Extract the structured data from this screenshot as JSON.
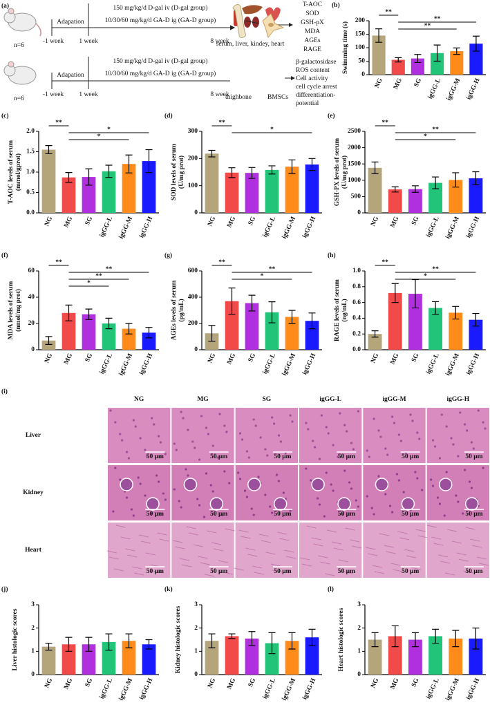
{
  "schematic": {
    "label": "(a)",
    "rows": [
      {
        "n": "n=6",
        "adaptation": "Adapation",
        "start": "-1 week",
        "week1": "1 week",
        "dose1": "150 mg/kg/d D-gal iv (D-gal group)",
        "dose2": "10/30/60 mg/kg/d GA-D ig (GA-D group)",
        "end": "8 week",
        "samples": [
          "serum, liver, kindey, heart"
        ],
        "outputs": [
          "T-AOC",
          "SOD",
          "GSH-pX",
          "MDA",
          "AGEs",
          "RAGE"
        ]
      },
      {
        "n": "n=6",
        "adaptation": "Adapation",
        "start": "-1 week",
        "week1": "1 week",
        "dose1": "150 mg/kg/d D-gal iv (D-gal group)",
        "dose2": "10/30/60 mg/kg/d GA-D ig (GA-D group)",
        "end": "8 week",
        "samples": [
          "thighbone",
          "BMSCs"
        ],
        "outputs": [
          "β-galactosidase",
          "ROS content",
          "Cell activity",
          "cell cycle arrest",
          "differentiation-",
          "potential"
        ]
      }
    ]
  },
  "histology": {
    "label": "(i)",
    "columns": [
      "NG",
      "MG",
      "SG",
      "igGG-L",
      "igGG-M",
      "igGG-H"
    ],
    "rows": [
      "Liver",
      "Kidney",
      "Heart"
    ],
    "scale_bar": "50 μm"
  },
  "chart_data": [
    {
      "type": "bar",
      "panel": "(b)",
      "ylabel": [
        "Swimming time (s)"
      ],
      "categories": [
        "NG",
        "MG",
        "SG",
        "igGG-L",
        "igGG-M",
        "igGG-H"
      ],
      "colors": [
        "#b5a57a",
        "#f04a4a",
        "#b030e0",
        "#22c47a",
        "#ff8c1a",
        "#1a1aff"
      ],
      "values": [
        145,
        55,
        60,
        80,
        87,
        115
      ],
      "errors": [
        25,
        8,
        15,
        30,
        12,
        28
      ],
      "ylim": [
        0,
        200
      ],
      "yticks": [
        0,
        50,
        100,
        150,
        200
      ],
      "significance": [
        {
          "between": [
            0,
            1
          ],
          "label": "**"
        },
        {
          "between": [
            1,
            5
          ],
          "label": "**"
        },
        {
          "between": [
            1,
            4
          ],
          "label": "**"
        }
      ]
    },
    {
      "type": "bar",
      "panel": "(c)",
      "ylabel": [
        "T-AOC levels of serum",
        "(mmol/gprot)"
      ],
      "categories": [
        "NG",
        "MG",
        "SG",
        "igGG-L",
        "igGG-M",
        "igGG-H"
      ],
      "colors": [
        "#b5a57a",
        "#f04a4a",
        "#b030e0",
        "#22c47a",
        "#ff8c1a",
        "#1a1aff"
      ],
      "values": [
        1.55,
        0.87,
        0.88,
        1.02,
        1.2,
        1.27
      ],
      "errors": [
        0.1,
        0.12,
        0.2,
        0.15,
        0.22,
        0.28
      ],
      "ylim": [
        0,
        2
      ],
      "yticks": [
        {
          "value": 0,
          "label": "0.0"
        },
        0.5,
        {
          "value": 1,
          "label": "1.0"
        },
        1.5,
        {
          "value": 2,
          "label": "2.0"
        }
      ],
      "significance": [
        {
          "between": [
            0,
            1
          ],
          "label": "**"
        },
        {
          "between": [
            1,
            5
          ],
          "label": "*"
        },
        {
          "between": [
            1,
            4
          ],
          "label": "*"
        }
      ]
    },
    {
      "type": "bar",
      "panel": "(d)",
      "ylabel": [
        "SOD levels of serum",
        "(U/mg prot)"
      ],
      "categories": [
        "NG",
        "MG",
        "SG",
        "igGG-L",
        "igGG-M",
        "igGG-H"
      ],
      "colors": [
        "#b5a57a",
        "#f04a4a",
        "#b030e0",
        "#22c47a",
        "#ff8c1a",
        "#1a1aff"
      ],
      "values": [
        218,
        148,
        147,
        158,
        170,
        178
      ],
      "errors": [
        12,
        18,
        20,
        15,
        25,
        22
      ],
      "ylim": [
        0,
        300
      ],
      "yticks": [
        0,
        100,
        200,
        300
      ],
      "significance": [
        {
          "between": [
            0,
            1
          ],
          "label": "**"
        },
        {
          "between": [
            1,
            5
          ],
          "label": "*"
        }
      ]
    },
    {
      "type": "bar",
      "panel": "(e)",
      "ylabel": [
        "GSH-PX levels of serum",
        "(U/mg prot)"
      ],
      "categories": [
        "NG",
        "MG",
        "SG",
        "igGG-L",
        "igGG-M",
        "igGG-H"
      ],
      "colors": [
        "#b5a57a",
        "#f04a4a",
        "#b030e0",
        "#22c47a",
        "#ff8c1a",
        "#1a1aff"
      ],
      "values": [
        1380,
        720,
        730,
        920,
        1010,
        1060
      ],
      "errors": [
        180,
        80,
        100,
        180,
        220,
        200
      ],
      "ylim": [
        0,
        2500
      ],
      "yticks": [
        0,
        500,
        1000,
        1500,
        2000,
        2500
      ],
      "significance": [
        {
          "between": [
            0,
            1
          ],
          "label": "**"
        },
        {
          "between": [
            1,
            5
          ],
          "label": "**"
        },
        {
          "between": [
            1,
            4
          ],
          "label": "*"
        }
      ]
    },
    {
      "type": "bar",
      "panel": "(f)",
      "ylabel": [
        "MDA levels of serum",
        "(nmol/mg prot)"
      ],
      "categories": [
        "NG",
        "MG",
        "SG",
        "igGG-L",
        "igGG-M",
        "igGG-H"
      ],
      "colors": [
        "#b5a57a",
        "#f04a4a",
        "#b030e0",
        "#22c47a",
        "#ff8c1a",
        "#1a1aff"
      ],
      "values": [
        7,
        28,
        27,
        20,
        16,
        13
      ],
      "errors": [
        3,
        6,
        4,
        4,
        4,
        4
      ],
      "ylim": [
        0,
        60
      ],
      "yticks": [
        0,
        20,
        40,
        60
      ],
      "significance": [
        {
          "between": [
            0,
            1
          ],
          "label": "**"
        },
        {
          "between": [
            1,
            5
          ],
          "label": "**"
        },
        {
          "between": [
            1,
            4
          ],
          "label": "**"
        },
        {
          "between": [
            1,
            3
          ],
          "label": "*"
        }
      ]
    },
    {
      "type": "bar",
      "panel": "(g)",
      "ylabel": [
        "AGEs levels of serum",
        "(pg/mL)"
      ],
      "categories": [
        "NG",
        "MG",
        "SG",
        "igGG-L",
        "igGG-M",
        "igGG-H"
      ],
      "colors": [
        "#b5a57a",
        "#f04a4a",
        "#b030e0",
        "#22c47a",
        "#ff8c1a",
        "#1a1aff"
      ],
      "values": [
        125,
        370,
        355,
        285,
        250,
        220
      ],
      "errors": [
        60,
        100,
        60,
        80,
        50,
        60
      ],
      "ylim": [
        0,
        600
      ],
      "yticks": [
        0,
        200,
        400,
        600
      ],
      "significance": [
        {
          "between": [
            0,
            1
          ],
          "label": "**"
        },
        {
          "between": [
            1,
            5
          ],
          "label": "**"
        },
        {
          "between": [
            1,
            4
          ],
          "label": "*"
        }
      ]
    },
    {
      "type": "bar",
      "panel": "(h)",
      "ylabel": [
        "RAGE levels of serum",
        "(ng/mL)"
      ],
      "categories": [
        "NG",
        "MG",
        "SG",
        "igGG-L",
        "igGG-M",
        "igGG-H"
      ],
      "colors": [
        "#b5a57a",
        "#f04a4a",
        "#b030e0",
        "#22c47a",
        "#ff8c1a",
        "#1a1aff"
      ],
      "values": [
        0.2,
        0.72,
        0.71,
        0.53,
        0.47,
        0.38
      ],
      "errors": [
        0.04,
        0.12,
        0.18,
        0.08,
        0.08,
        0.08
      ],
      "ylim": [
        0,
        1
      ],
      "yticks": [
        {
          "value": 0,
          "label": "0.0"
        },
        0.2,
        0.4,
        0.6,
        0.8,
        {
          "value": 1,
          "label": "1.0"
        }
      ],
      "significance": [
        {
          "between": [
            0,
            1
          ],
          "label": "**"
        },
        {
          "between": [
            1,
            5
          ],
          "label": "**"
        },
        {
          "between": [
            1,
            4
          ],
          "label": "*"
        }
      ]
    },
    {
      "type": "bar",
      "panel": "(j)",
      "ylabel": [
        "Liver histologic scores"
      ],
      "categories": [
        "NG",
        "MG",
        "SG",
        "igGG-L",
        "igGG-M",
        "igGG-H"
      ],
      "colors": [
        "#b5a57a",
        "#f04a4a",
        "#b030e0",
        "#22c47a",
        "#ff8c1a",
        "#1a1aff"
      ],
      "values": [
        1.2,
        1.3,
        1.3,
        1.4,
        1.45,
        1.3
      ],
      "errors": [
        0.15,
        0.3,
        0.3,
        0.35,
        0.3,
        0.2
      ],
      "ylim": [
        0,
        3
      ],
      "yticks": [
        0,
        1,
        2,
        3
      ],
      "significance": []
    },
    {
      "type": "bar",
      "panel": "(k)",
      "ylabel": [
        "Kidney histologic scores"
      ],
      "categories": [
        "NG",
        "MG",
        "SG",
        "igGG-L",
        "igGG-M",
        "igGG-H"
      ],
      "colors": [
        "#b5a57a",
        "#f04a4a",
        "#b030e0",
        "#22c47a",
        "#ff8c1a",
        "#1a1aff"
      ],
      "values": [
        1.45,
        1.65,
        1.55,
        1.35,
        1.45,
        1.6
      ],
      "errors": [
        0.3,
        0.1,
        0.3,
        0.45,
        0.35,
        0.35
      ],
      "ylim": [
        0,
        3
      ],
      "yticks": [
        0,
        1,
        2,
        3
      ],
      "significance": []
    },
    {
      "type": "bar",
      "panel": "(l)",
      "ylabel": [
        "Heart histologic scores"
      ],
      "categories": [
        "NG",
        "MG",
        "SG",
        "igGG-L",
        "igGG-M",
        "igGG-H"
      ],
      "colors": [
        "#b5a57a",
        "#f04a4a",
        "#b030e0",
        "#22c47a",
        "#ff8c1a",
        "#1a1aff"
      ],
      "values": [
        1.5,
        1.65,
        1.5,
        1.65,
        1.55,
        1.55
      ],
      "errors": [
        0.3,
        0.45,
        0.3,
        0.3,
        0.35,
        0.45
      ],
      "ylim": [
        0,
        3
      ],
      "yticks": [
        0,
        1,
        2,
        3
      ],
      "significance": []
    }
  ]
}
